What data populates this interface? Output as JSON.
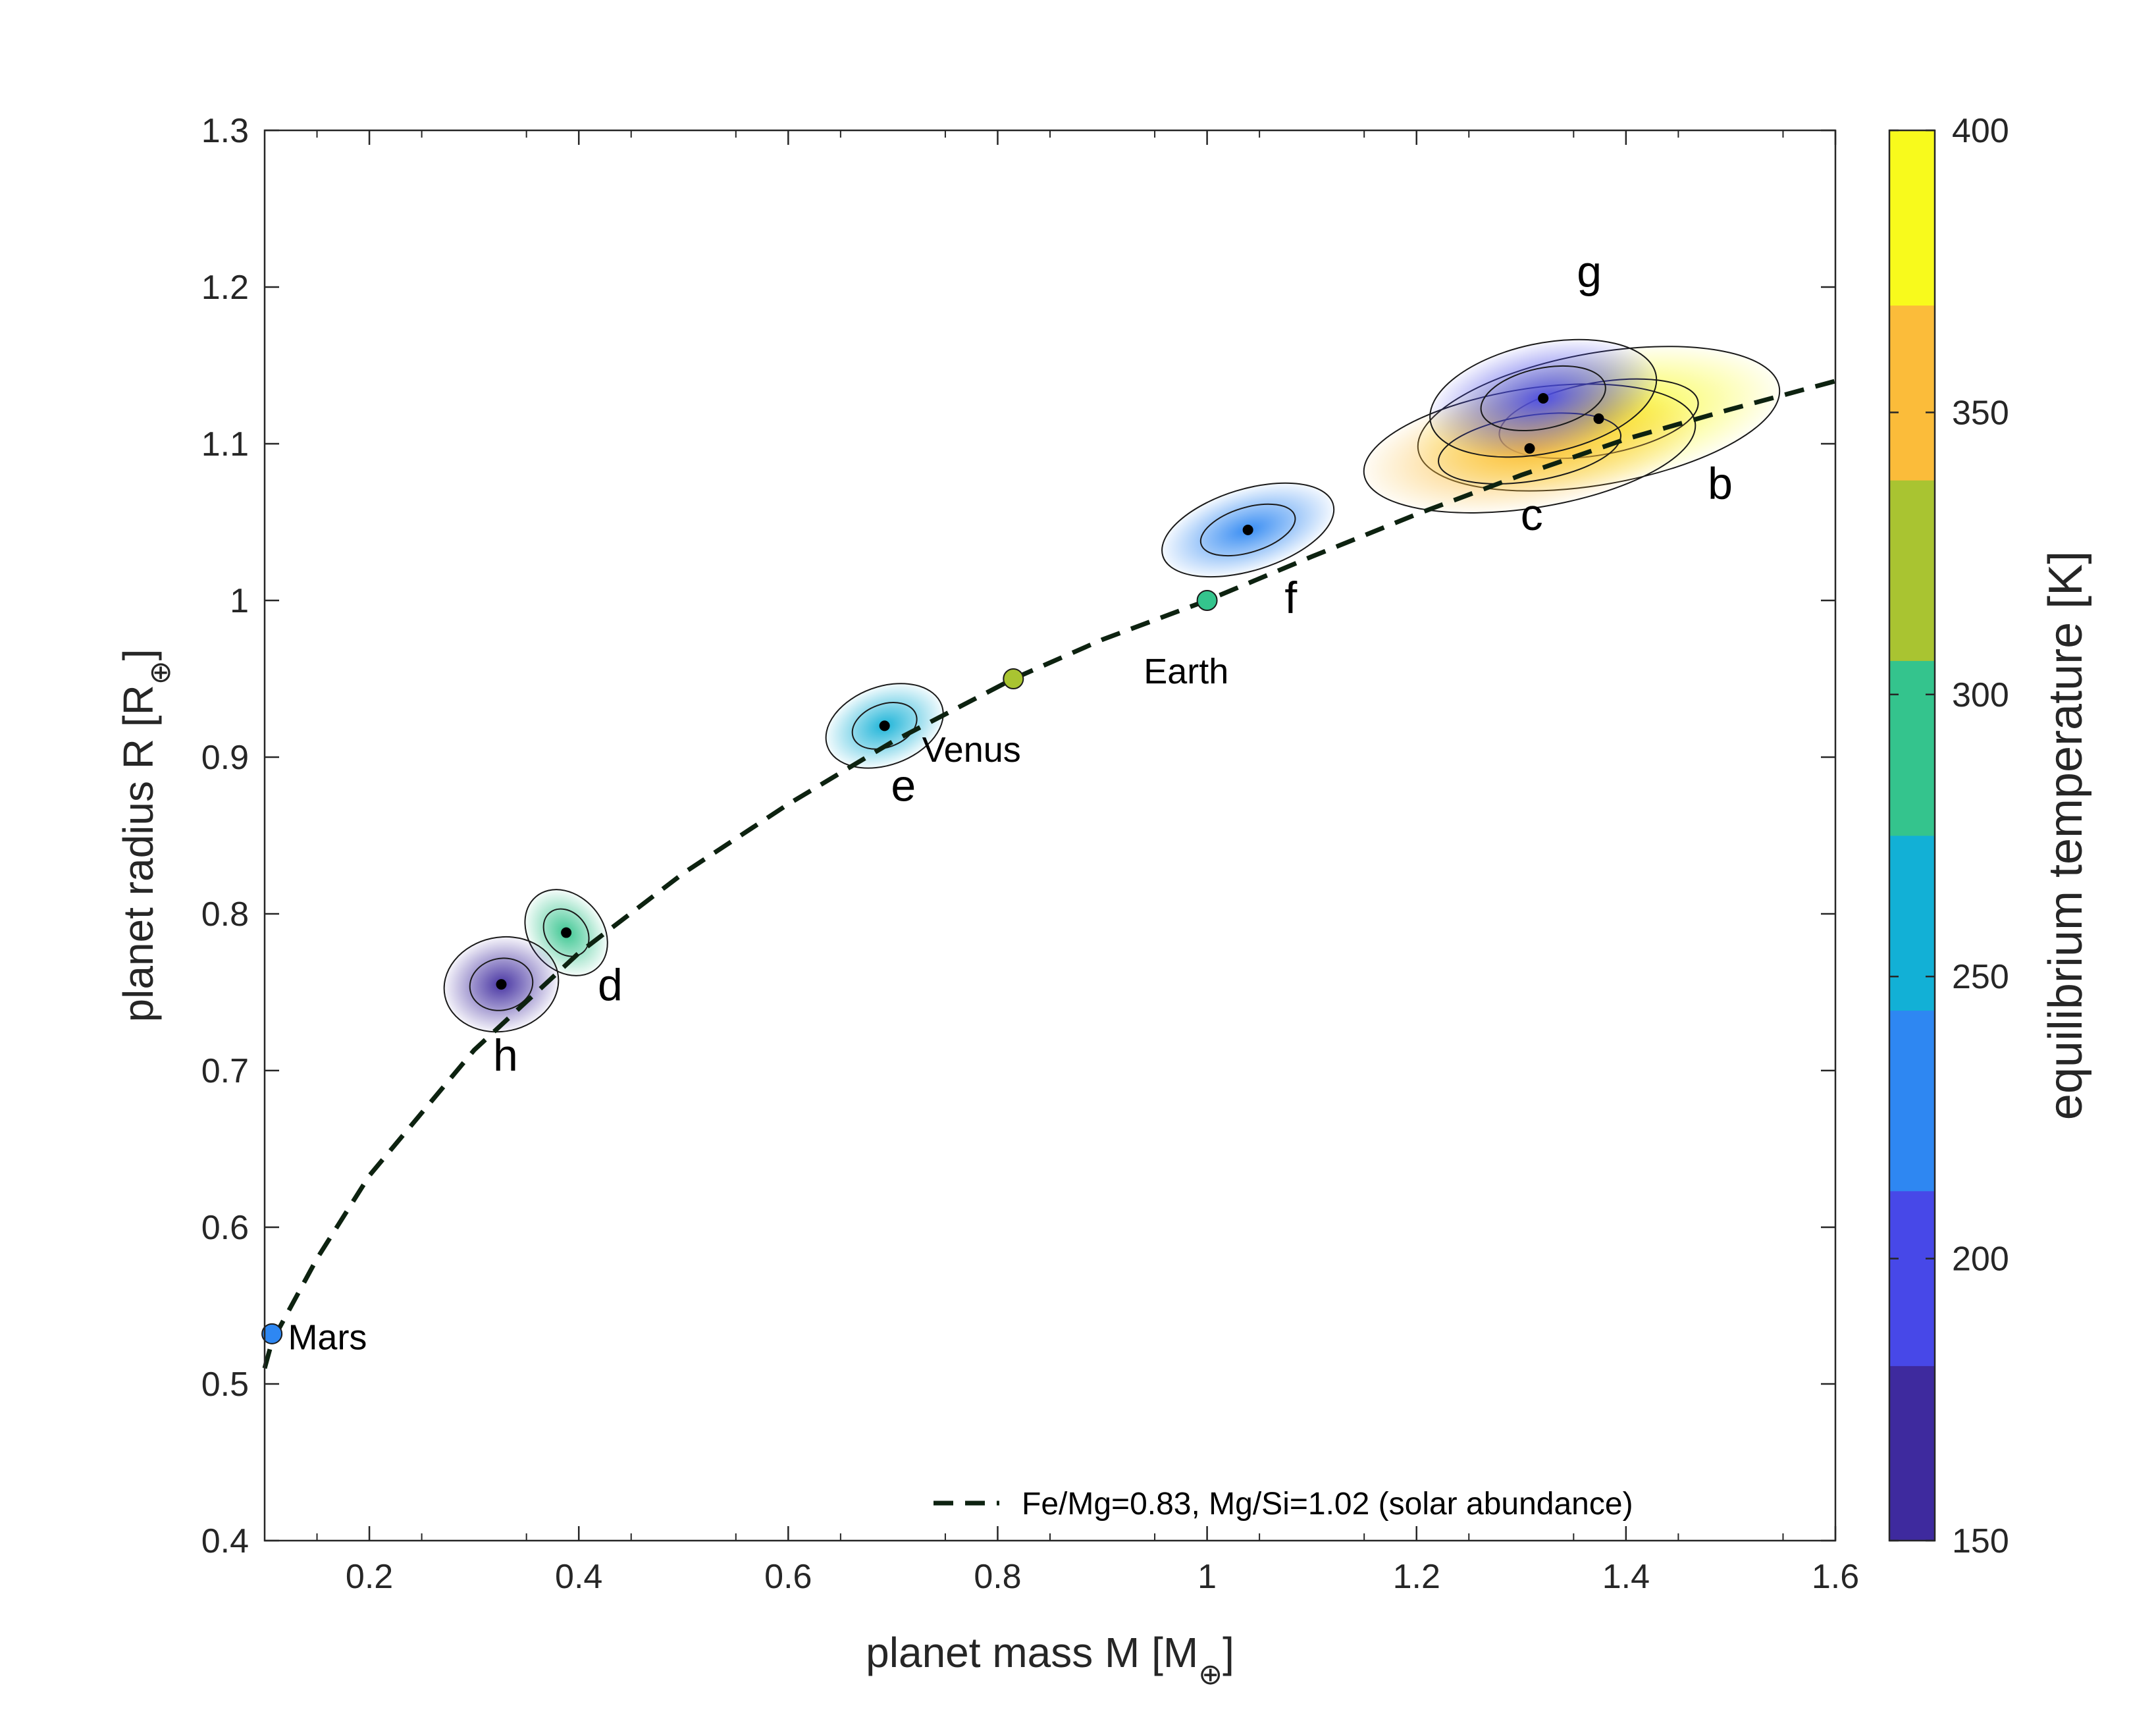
{
  "chart_data": {
    "type": "scatter",
    "title": "",
    "xlabel": "planet mass M [M",
    "xlabel_subscript": "⊕",
    "xlabel_close": "]",
    "ylabel": "planet radius R [R",
    "ylabel_subscript": "⊕",
    "ylabel_close": "]",
    "xlim": [
      0.1,
      1.6
    ],
    "ylim": [
      0.4,
      1.3
    ],
    "xticks": [
      "0.2",
      "0.4",
      "0.6",
      "0.8",
      "1",
      "1.2",
      "1.4",
      "1.6"
    ],
    "yticks": [
      "0.4",
      "0.5",
      "0.6",
      "0.7",
      "0.8",
      "0.9",
      "1",
      "1.1",
      "1.2",
      "1.3"
    ],
    "grid": false,
    "colorbar": {
      "label": "equilibrium temperature [K]",
      "range": [
        150,
        400
      ],
      "tick_labels": [
        "150",
        "200",
        "250",
        "300",
        "350",
        "400"
      ],
      "bands": [
        {
          "from": 150,
          "to": 181,
          "color": "#3e2a9e"
        },
        {
          "from": 181,
          "to": 212,
          "color": "#4748e8"
        },
        {
          "from": 212,
          "to": 244,
          "color": "#2e87f2"
        },
        {
          "from": 244,
          "to": 275,
          "color": "#12b0d6"
        },
        {
          "from": 275,
          "to": 306,
          "color": "#34c48d"
        },
        {
          "from": 306,
          "to": 338,
          "color": "#a9c431"
        },
        {
          "from": 338,
          "to": 369,
          "color": "#fbbc3a"
        },
        {
          "from": 369,
          "to": 400,
          "color": "#f8fa1c"
        }
      ]
    },
    "planets": [
      {
        "name": "b",
        "mass": 1.374,
        "radius": 1.116,
        "temp": 400,
        "color": "#f8fa1c",
        "label_mass": 1.49,
        "label_radius": 1.065
      },
      {
        "name": "c",
        "mass": 1.308,
        "radius": 1.097,
        "temp": 342,
        "color": "#fbbc3a",
        "label_mass": 1.31,
        "label_radius": 1.045
      },
      {
        "name": "d",
        "mass": 0.388,
        "radius": 0.788,
        "temp": 288,
        "color": "#34c48d",
        "label_mass": 0.43,
        "label_radius": 0.745
      },
      {
        "name": "e",
        "mass": 0.692,
        "radius": 0.92,
        "temp": 251,
        "color": "#12b0d6",
        "label_mass": 0.71,
        "label_radius": 0.872
      },
      {
        "name": "f",
        "mass": 1.039,
        "radius": 1.045,
        "temp": 219,
        "color": "#2e87f2",
        "label_mass": 1.08,
        "label_radius": 0.992
      },
      {
        "name": "g",
        "mass": 1.321,
        "radius": 1.129,
        "temp": 198,
        "color": "#4748e8",
        "label_mass": 1.365,
        "label_radius": 1.2
      },
      {
        "name": "h",
        "mass": 0.326,
        "radius": 0.755,
        "temp": 173,
        "color": "#3e2a9e",
        "label_mass": 0.33,
        "label_radius": 0.7
      }
    ],
    "solar_system": [
      {
        "name": "Mars",
        "mass": 0.107,
        "radius": 0.532,
        "color": "#2e87f2",
        "label_mass": 0.16,
        "label_radius": 0.522
      },
      {
        "name": "Venus",
        "mass": 0.815,
        "radius": 0.95,
        "color": "#a9c431",
        "label_mass": 0.775,
        "label_radius": 0.897
      },
      {
        "name": "Earth",
        "mass": 1.0,
        "radius": 1.0,
        "color": "#34c48d",
        "label_mass": 0.98,
        "label_radius": 0.947
      }
    ],
    "model_curve": {
      "label": "Fe/Mg=0.83, Mg/Si=1.02 (solar abundance)",
      "style": "dashed",
      "color": "#0d2210",
      "x": [
        0.1,
        0.107,
        0.15,
        0.2,
        0.3,
        0.4,
        0.5,
        0.6,
        0.7,
        0.815,
        0.9,
        1.0,
        1.1,
        1.2,
        1.3,
        1.4,
        1.5,
        1.6
      ],
      "y": [
        0.51,
        0.527,
        0.58,
        0.633,
        0.713,
        0.775,
        0.826,
        0.87,
        0.91,
        0.95,
        0.975,
        1.0,
        1.028,
        1.055,
        1.08,
        1.103,
        1.122,
        1.14
      ]
    },
    "legend_location": "bottom-right"
  }
}
